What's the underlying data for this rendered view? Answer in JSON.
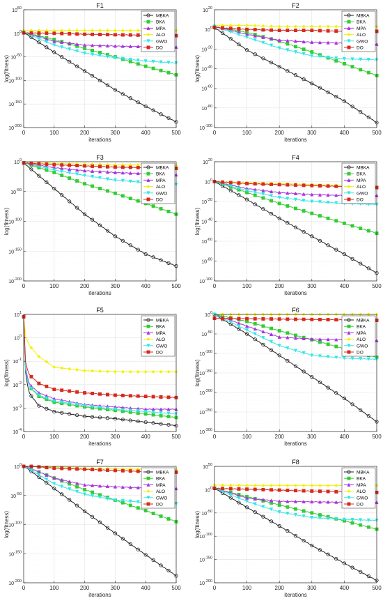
{
  "legend_labels": [
    "MBKA",
    "BKA",
    "MPA",
    "ALO",
    "GWO",
    "DO"
  ],
  "series_colors": {
    "MBKA": "#222222",
    "BKA": "#33cc33",
    "MPA": "#aa33dd",
    "ALO": "#f2f200",
    "GWO": "#33e6e6",
    "DO": "#d62a1e"
  },
  "chart_data": [
    {
      "type": "line",
      "title": "F1",
      "xlabel": "iterations",
      "ylabel": "log(fitness)",
      "xlim": [
        0,
        500
      ],
      "yscale": "log",
      "ylim_exp": [
        -200,
        50
      ],
      "yticks_exp": [
        -200,
        -150,
        -100,
        -50,
        0,
        50
      ],
      "xticks": [
        0,
        100,
        200,
        300,
        400,
        500
      ],
      "series": [
        {
          "name": "MBKA",
          "x": [
            0,
            100,
            200,
            300,
            400,
            500
          ],
          "y_exp": [
            2,
            -40,
            -80,
            -120,
            -155,
            -188
          ]
        },
        {
          "name": "BKA",
          "x": [
            0,
            100,
            200,
            300,
            400,
            500
          ],
          "y_exp": [
            2,
            -13,
            -32,
            -50,
            -70,
            -88
          ]
        },
        {
          "name": "MPA",
          "x": [
            0,
            100,
            200,
            300,
            400,
            500
          ],
          "y_exp": [
            2,
            -17,
            -25,
            -27,
            -28,
            -29
          ]
        },
        {
          "name": "ALO",
          "x": [
            0,
            100,
            200,
            300,
            400,
            500
          ],
          "y_exp": [
            6,
            6,
            6,
            6,
            6,
            6
          ]
        },
        {
          "name": "GWO",
          "x": [
            0,
            100,
            200,
            300,
            400,
            500
          ],
          "y_exp": [
            2,
            -25,
            -42,
            -52,
            -59,
            -63
          ]
        },
        {
          "name": "DO",
          "x": [
            0,
            100,
            200,
            300,
            400,
            500
          ],
          "y_exp": [
            1,
            0,
            -2,
            -3,
            -4,
            -5
          ]
        }
      ]
    },
    {
      "type": "line",
      "title": "F2",
      "xlabel": "iterations",
      "ylabel": "log(fitness)",
      "xlim": [
        0,
        500
      ],
      "yscale": "log",
      "ylim_exp": [
        -100,
        20
      ],
      "yticks_exp": [
        -100,
        -80,
        -60,
        -40,
        -20,
        0,
        20
      ],
      "xticks": [
        0,
        100,
        200,
        300,
        400,
        500
      ],
      "series": [
        {
          "name": "MBKA",
          "x": [
            0,
            100,
            200,
            300,
            400,
            500
          ],
          "y_exp": [
            2,
            -21,
            -38,
            -55,
            -73,
            -95
          ]
        },
        {
          "name": "BKA",
          "x": [
            0,
            100,
            200,
            300,
            400,
            500
          ],
          "y_exp": [
            3,
            -3,
            -12,
            -23,
            -35,
            -47
          ]
        },
        {
          "name": "MPA",
          "x": [
            0,
            100,
            200,
            300,
            400,
            500
          ],
          "y_exp": [
            3,
            -5,
            -11,
            -13,
            -14,
            -15
          ]
        },
        {
          "name": "ALO",
          "x": [
            0,
            100,
            200,
            300,
            400,
            500
          ],
          "y_exp": [
            4,
            4,
            3,
            3,
            3,
            3
          ]
        },
        {
          "name": "GWO",
          "x": [
            0,
            100,
            200,
            300,
            400,
            500
          ],
          "y_exp": [
            3,
            -8,
            -19,
            -27,
            -30,
            -31
          ]
        },
        {
          "name": "DO",
          "x": [
            0,
            100,
            200,
            300,
            400,
            500
          ],
          "y_exp": [
            2,
            0,
            -1,
            -1,
            -2,
            -2
          ]
        }
      ]
    },
    {
      "type": "line",
      "title": "F3",
      "xlabel": "iterations",
      "ylabel": "log(fitness)",
      "xlim": [
        0,
        500
      ],
      "yscale": "log",
      "ylim_exp": [
        -200,
        0
      ],
      "yticks_exp": [
        -200,
        -150,
        -100,
        -50,
        0
      ],
      "xticks": [
        0,
        100,
        200,
        300,
        400,
        500
      ],
      "series": [
        {
          "name": "MBKA",
          "x": [
            0,
            100,
            200,
            300,
            400,
            500
          ],
          "y_exp": [
            -2,
            -45,
            -88,
            -125,
            -155,
            -175
          ]
        },
        {
          "name": "BKA",
          "x": [
            0,
            100,
            200,
            300,
            400,
            500
          ],
          "y_exp": [
            -2,
            -18,
            -37,
            -53,
            -70,
            -88
          ]
        },
        {
          "name": "MPA",
          "x": [
            0,
            100,
            200,
            300,
            400,
            500
          ],
          "y_exp": [
            -2,
            -10,
            -15,
            -18,
            -20,
            -22
          ]
        },
        {
          "name": "ALO",
          "x": [
            0,
            100,
            200,
            300,
            400,
            500
          ],
          "y_exp": [
            -2,
            -3,
            -4,
            -5,
            -5,
            -6
          ]
        },
        {
          "name": "GWO",
          "x": [
            0,
            100,
            200,
            300,
            400,
            500
          ],
          "y_exp": [
            -2,
            -14,
            -23,
            -31,
            -35,
            -38
          ]
        },
        {
          "name": "DO",
          "x": [
            0,
            100,
            200,
            300,
            400,
            500
          ],
          "y_exp": [
            -2,
            -5,
            -7,
            -9,
            -10,
            -11
          ]
        }
      ]
    },
    {
      "type": "line",
      "title": "F4",
      "xlabel": "iterations",
      "ylabel": "log(fitness)",
      "xlim": [
        0,
        500
      ],
      "yscale": "log",
      "ylim_exp": [
        -100,
        20
      ],
      "yticks_exp": [
        -100,
        -80,
        -60,
        -40,
        -20,
        0,
        20
      ],
      "xticks": [
        0,
        100,
        200,
        300,
        400,
        500
      ],
      "series": [
        {
          "name": "MBKA",
          "x": [
            0,
            100,
            200,
            300,
            400,
            500
          ],
          "y_exp": [
            0,
            -18,
            -37,
            -55,
            -73,
            -92
          ]
        },
        {
          "name": "BKA",
          "x": [
            0,
            100,
            200,
            300,
            400,
            500
          ],
          "y_exp": [
            0,
            -11,
            -22,
            -32,
            -42,
            -52
          ]
        },
        {
          "name": "MPA",
          "x": [
            0,
            100,
            200,
            300,
            400,
            500
          ],
          "y_exp": [
            0,
            -7,
            -11,
            -13,
            -14,
            -14
          ]
        },
        {
          "name": "ALO",
          "x": [
            0,
            100,
            200,
            300,
            400,
            500
          ],
          "y_exp": [
            0,
            -1,
            -2,
            -3,
            -4,
            -5
          ]
        },
        {
          "name": "GWO",
          "x": [
            0,
            100,
            200,
            300,
            400,
            500
          ],
          "y_exp": [
            0,
            -9,
            -16,
            -20,
            -22,
            -23
          ]
        },
        {
          "name": "DO",
          "x": [
            0,
            100,
            200,
            300,
            400,
            500
          ],
          "y_exp": [
            0,
            -2,
            -3,
            -4,
            -5,
            -6
          ]
        }
      ]
    },
    {
      "type": "line",
      "title": "F5",
      "xlabel": "iterations",
      "ylabel": "log(fitness)",
      "xlim": [
        0,
        500
      ],
      "yscale": "log",
      "ylim_exp": [
        -4,
        1
      ],
      "yticks_exp": [
        -4,
        -3,
        -2,
        -1,
        0,
        1
      ],
      "xticks": [
        0,
        100,
        200,
        300,
        400,
        500
      ],
      "series": [
        {
          "name": "MBKA",
          "x": [
            0,
            5,
            10,
            20,
            50,
            100,
            200,
            300,
            400,
            500
          ],
          "y_exp": [
            0.9,
            -1.3,
            -1.9,
            -2.4,
            -2.9,
            -3.15,
            -3.35,
            -3.45,
            -3.6,
            -3.75
          ]
        },
        {
          "name": "BKA",
          "x": [
            0,
            5,
            10,
            20,
            50,
            100,
            200,
            300,
            400,
            500
          ],
          "y_exp": [
            0.9,
            -1.2,
            -1.7,
            -2.1,
            -2.5,
            -2.75,
            -2.95,
            -3.1,
            -3.25,
            -3.4
          ]
        },
        {
          "name": "MPA",
          "x": [
            0,
            5,
            10,
            20,
            50,
            100,
            200,
            300,
            400,
            500
          ],
          "y_exp": [
            0.9,
            -1.1,
            -1.6,
            -2.0,
            -2.35,
            -2.6,
            -2.85,
            -2.95,
            -3.05,
            -3.05
          ]
        },
        {
          "name": "ALO",
          "x": [
            0,
            5,
            10,
            20,
            50,
            100,
            200,
            300,
            400,
            500
          ],
          "y_exp": [
            0.9,
            0.2,
            -0.1,
            -0.35,
            -0.8,
            -1.25,
            -1.4,
            -1.45,
            -1.45,
            -1.45
          ]
        },
        {
          "name": "GWO",
          "x": [
            0,
            5,
            10,
            20,
            50,
            100,
            200,
            300,
            400,
            500
          ],
          "y_exp": [
            0.9,
            -1.2,
            -1.7,
            -2.1,
            -2.45,
            -2.7,
            -2.9,
            -3.05,
            -3.15,
            -3.25
          ]
        },
        {
          "name": "DO",
          "x": [
            0,
            5,
            10,
            20,
            50,
            100,
            200,
            300,
            400,
            500
          ],
          "y_exp": [
            0.9,
            -0.9,
            -1.3,
            -1.6,
            -1.95,
            -2.2,
            -2.35,
            -2.45,
            -2.5,
            -2.55
          ]
        }
      ]
    },
    {
      "type": "line",
      "title": "F6",
      "xlabel": "iterations",
      "ylabel": "log(fitness)",
      "xlim": [
        0,
        500
      ],
      "yscale": "log",
      "ylim_exp": [
        -300,
        0
      ],
      "yticks_exp": [
        -300,
        -250,
        -200,
        -150,
        -100,
        -50,
        0
      ],
      "xticks": [
        0,
        100,
        200,
        300,
        400,
        500
      ],
      "series": [
        {
          "name": "MBKA",
          "x": [
            0,
            100,
            200,
            300,
            400,
            500
          ],
          "y_exp": [
            0,
            -50,
            -105,
            -160,
            -215,
            -275
          ]
        },
        {
          "name": "BKA",
          "x": [
            0,
            100,
            200,
            300,
            400,
            500
          ],
          "y_exp": [
            0,
            -18,
            -42,
            -65,
            -88,
            -110
          ]
        },
        {
          "name": "MPA",
          "x": [
            0,
            100,
            200,
            300,
            400,
            500
          ],
          "y_exp": [
            0,
            -30,
            -58,
            -63,
            -65,
            -67
          ]
        },
        {
          "name": "ALO",
          "x": [
            0,
            100,
            200,
            300,
            400,
            500
          ],
          "y_exp": [
            1,
            1,
            1,
            1,
            1,
            1
          ]
        },
        {
          "name": "GWO",
          "x": [
            0,
            100,
            200,
            300,
            400,
            500
          ],
          "y_exp": [
            0,
            -40,
            -80,
            -105,
            -112,
            -115
          ]
        },
        {
          "name": "DO",
          "x": [
            0,
            100,
            200,
            300,
            400,
            500
          ],
          "y_exp": [
            -10,
            -11,
            -12,
            -13,
            -14,
            -15
          ]
        }
      ]
    },
    {
      "type": "line",
      "title": "F7",
      "xlabel": "iterations",
      "ylabel": "log(fitness)",
      "xlim": [
        0,
        500
      ],
      "yscale": "log",
      "ylim_exp": [
        -200,
        0
      ],
      "yticks_exp": [
        -200,
        -150,
        -100,
        -50,
        0
      ],
      "xticks": [
        0,
        100,
        200,
        300,
        400,
        500
      ],
      "series": [
        {
          "name": "MBKA",
          "x": [
            0,
            100,
            200,
            300,
            400,
            500
          ],
          "y_exp": [
            1,
            -38,
            -77,
            -115,
            -152,
            -188
          ]
        },
        {
          "name": "BKA",
          "x": [
            0,
            100,
            200,
            300,
            400,
            500
          ],
          "y_exp": [
            1,
            -20,
            -40,
            -58,
            -76,
            -95
          ]
        },
        {
          "name": "MPA",
          "x": [
            0,
            100,
            200,
            300,
            400,
            500
          ],
          "y_exp": [
            1,
            -20,
            -32,
            -35,
            -37,
            -38
          ]
        },
        {
          "name": "ALO",
          "x": [
            0,
            100,
            200,
            300,
            400,
            500
          ],
          "y_exp": [
            1,
            -2,
            -3,
            -4,
            -5,
            -6
          ]
        },
        {
          "name": "GWO",
          "x": [
            0,
            100,
            200,
            300,
            400,
            500
          ],
          "y_exp": [
            1,
            -30,
            -48,
            -58,
            -62,
            -64
          ]
        },
        {
          "name": "DO",
          "x": [
            0,
            100,
            200,
            300,
            400,
            500
          ],
          "y_exp": [
            1,
            -3,
            -5,
            -7,
            -9,
            -10
          ]
        }
      ]
    },
    {
      "type": "line",
      "title": "F8",
      "xlabel": "iterations",
      "ylabel": "log(fitness)",
      "xlim": [
        0,
        500
      ],
      "yscale": "log",
      "ylim_exp": [
        -200,
        50
      ],
      "yticks_exp": [
        -200,
        -150,
        -100,
        -50,
        0,
        50
      ],
      "xticks": [
        0,
        100,
        200,
        300,
        400,
        500
      ],
      "series": [
        {
          "name": "MBKA",
          "x": [
            0,
            100,
            200,
            300,
            400,
            500
          ],
          "y_exp": [
            3,
            -38,
            -78,
            -120,
            -158,
            -195
          ]
        },
        {
          "name": "BKA",
          "x": [
            0,
            100,
            200,
            300,
            400,
            500
          ],
          "y_exp": [
            3,
            -15,
            -33,
            -50,
            -67,
            -85
          ]
        },
        {
          "name": "MPA",
          "x": [
            0,
            100,
            200,
            300,
            400,
            500
          ],
          "y_exp": [
            3,
            -18,
            -25,
            -26,
            -27,
            -27
          ]
        },
        {
          "name": "ALO",
          "x": [
            0,
            100,
            200,
            300,
            400,
            500
          ],
          "y_exp": [
            10,
            9,
            9,
            9,
            9,
            9
          ]
        },
        {
          "name": "GWO",
          "x": [
            0,
            100,
            200,
            300,
            400,
            500
          ],
          "y_exp": [
            3,
            -25,
            -48,
            -60,
            -64,
            -66
          ]
        },
        {
          "name": "DO",
          "x": [
            0,
            100,
            200,
            300,
            400,
            500
          ],
          "y_exp": [
            3,
            1,
            -1,
            -3,
            -5,
            -6
          ]
        }
      ]
    }
  ]
}
